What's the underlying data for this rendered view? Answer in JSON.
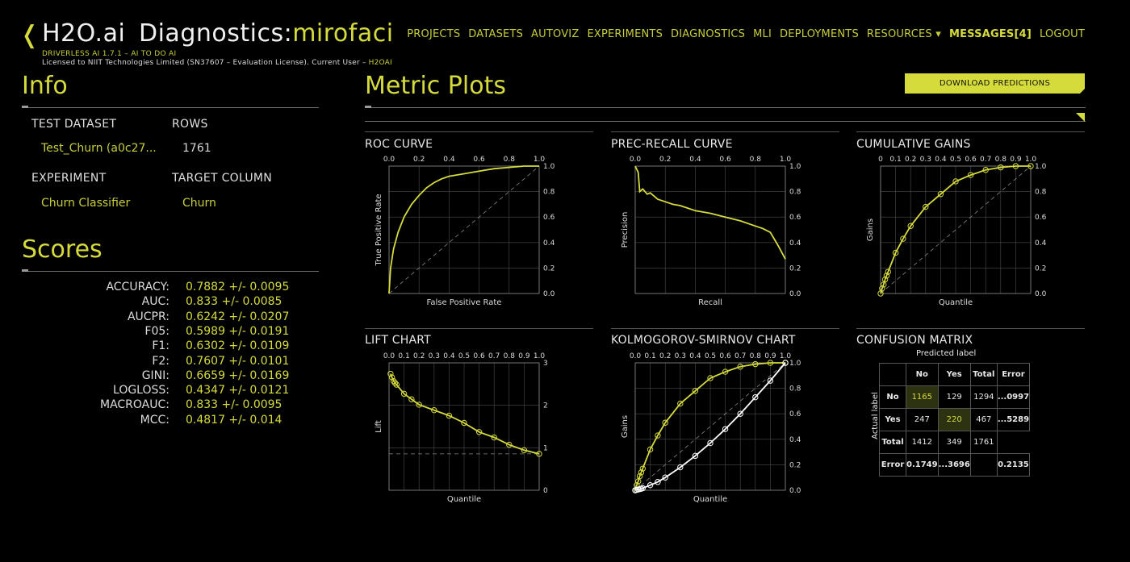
{
  "header": {
    "back_glyph": "❬",
    "brand": "H2O.ai",
    "title_prefix": "Diagnostics:",
    "title_name": "mirofaci",
    "version_line": "DRIVERLESS AI 1.7.1 – AI TO DO AI",
    "license_line": "Licensed to NIIT Technologies Limited (SN37607 – Evaluation License). Current User – ",
    "current_user": "H2OAI"
  },
  "nav": {
    "items": [
      "PROJECTS",
      "DATASETS",
      "AUTOVIZ",
      "EXPERIMENTS",
      "DIAGNOSTICS",
      "MLI",
      "DEPLOYMENTS"
    ],
    "resources": "RESOURCES ▾",
    "messages": "MESSAGES[4]",
    "logout": "LOGOUT"
  },
  "info": {
    "title": "Info",
    "test_dataset_label": "TEST DATASET",
    "test_dataset_value": "Test_Churn (a0c27...",
    "rows_label": "ROWS",
    "rows_value": "1761",
    "experiment_label": "EXPERIMENT",
    "experiment_value": "Churn Classifier",
    "target_label": "TARGET COLUMN",
    "target_value": "Churn"
  },
  "scores": {
    "title": "Scores",
    "items": [
      {
        "name": "ACCURACY:",
        "value": "0.7882 +/- 0.0095"
      },
      {
        "name": "AUC:",
        "value": "0.833 +/- 0.0085"
      },
      {
        "name": "AUCPR:",
        "value": "0.6242 +/- 0.0207"
      },
      {
        "name": "F05:",
        "value": "0.5989 +/- 0.0191"
      },
      {
        "name": "F1:",
        "value": "0.6302 +/- 0.0109"
      },
      {
        "name": "F2:",
        "value": "0.7607 +/- 0.0101"
      },
      {
        "name": "GINI:",
        "value": "0.6659 +/- 0.0169"
      },
      {
        "name": "LOGLOSS:",
        "value": "0.4347 +/- 0.0121"
      },
      {
        "name": "MACROAUC:",
        "value": "0.833 +/- 0.0095"
      },
      {
        "name": "MCC:",
        "value": "0.4817 +/- 0.014"
      }
    ]
  },
  "metric_plots": {
    "title": "Metric Plots",
    "download_label": "DOWNLOAD PREDICTIONS"
  },
  "colors": {
    "accent": "#d6db3c",
    "grid": "#4a4a4a",
    "ks_white": "#ffffff"
  },
  "chart_data": [
    {
      "id": "roc",
      "type": "line",
      "title": "ROC CURVE",
      "xlabel": "False Positive Rate",
      "ylabel": "True Positive Rate",
      "xlim": [
        0,
        1
      ],
      "ylim": [
        0,
        1
      ],
      "xticks": [
        "0.0",
        "0.2",
        "0.4",
        "0.6",
        "0.8",
        "1.0"
      ],
      "yticks": [
        "0.0",
        "0.2",
        "0.4",
        "0.6",
        "0.8",
        "1.0"
      ],
      "x_axis_position": "top",
      "y_axis_position": "right",
      "series": [
        {
          "x": [
            0,
            0.01,
            0.03,
            0.06,
            0.1,
            0.15,
            0.2,
            0.25,
            0.3,
            0.35,
            0.4,
            0.5,
            0.6,
            0.7,
            0.8,
            0.9,
            1.0
          ],
          "y": [
            0,
            0.2,
            0.35,
            0.48,
            0.6,
            0.7,
            0.77,
            0.83,
            0.87,
            0.9,
            0.92,
            0.94,
            0.96,
            0.98,
            0.99,
            1.0,
            1.0
          ]
        }
      ],
      "diagonal": true
    },
    {
      "id": "pr",
      "type": "line",
      "title": "PREC-RECALL CURVE",
      "xlabel": "Recall",
      "ylabel": "Precision",
      "xlim": [
        0,
        1
      ],
      "ylim": [
        0,
        1
      ],
      "xticks": [
        "0.0",
        "0.2",
        "0.4",
        "0.6",
        "0.8",
        "1.0"
      ],
      "yticks": [
        "0.0",
        "0.2",
        "0.4",
        "0.6",
        "0.8",
        "1.0"
      ],
      "x_axis_position": "top",
      "y_axis_position": "right",
      "series": [
        {
          "x": [
            0,
            0.02,
            0.03,
            0.05,
            0.08,
            0.1,
            0.15,
            0.2,
            0.25,
            0.3,
            0.35,
            0.4,
            0.5,
            0.6,
            0.7,
            0.8,
            0.85,
            0.9,
            0.95,
            1.0
          ],
          "y": [
            1.0,
            0.95,
            0.8,
            0.82,
            0.78,
            0.79,
            0.74,
            0.72,
            0.7,
            0.69,
            0.67,
            0.65,
            0.63,
            0.6,
            0.57,
            0.53,
            0.51,
            0.48,
            0.38,
            0.27
          ]
        }
      ],
      "diagonal": false
    },
    {
      "id": "gains",
      "type": "line",
      "title": "CUMULATIVE GAINS",
      "xlabel": "Quantile",
      "ylabel": "Gains",
      "xlim": [
        0,
        1
      ],
      "ylim": [
        0,
        1
      ],
      "xticks": [
        "0",
        "0.1",
        "0.2",
        "0.3",
        "0.4",
        "0.5",
        "0.6",
        "0.7",
        "0.8",
        "0.9",
        "1.0"
      ],
      "yticks": [
        "0.0",
        "0.2",
        "0.4",
        "0.6",
        "0.8",
        "1.0"
      ],
      "x_axis_position": "top",
      "y_axis_position": "right",
      "series": [
        {
          "x": [
            0,
            0.01,
            0.02,
            0.03,
            0.04,
            0.05,
            0.1,
            0.15,
            0.2,
            0.3,
            0.4,
            0.5,
            0.6,
            0.7,
            0.8,
            0.9,
            1.0
          ],
          "y": [
            0,
            0.04,
            0.07,
            0.11,
            0.14,
            0.17,
            0.32,
            0.43,
            0.53,
            0.68,
            0.78,
            0.88,
            0.93,
            0.97,
            0.99,
            1.0,
            1.0
          ],
          "markers": true
        }
      ],
      "diagonal": true
    },
    {
      "id": "lift",
      "type": "line",
      "title": "LIFT CHART",
      "xlabel": "Quantile",
      "ylabel": "Lift",
      "xlim": [
        0,
        1
      ],
      "ylim": [
        0,
        3.5
      ],
      "xticks": [
        "0.0",
        "0.1",
        "0.2",
        "0.3",
        "0.4",
        "0.5",
        "0.6",
        "0.7",
        "0.8",
        "0.9",
        "1.0"
      ],
      "yticks": [
        "0",
        "1",
        "2",
        "3"
      ],
      "x_axis_position": "top",
      "y_axis_position": "right",
      "series": [
        {
          "x": [
            0.01,
            0.02,
            0.03,
            0.04,
            0.05,
            0.1,
            0.15,
            0.2,
            0.3,
            0.4,
            0.5,
            0.6,
            0.7,
            0.8,
            0.9,
            1.0
          ],
          "y": [
            3.2,
            3.1,
            3.0,
            2.95,
            2.9,
            2.65,
            2.5,
            2.35,
            2.2,
            2.05,
            1.85,
            1.6,
            1.45,
            1.25,
            1.1,
            1.0
          ],
          "markers": true
        }
      ],
      "baseline": 1
    },
    {
      "id": "ks",
      "type": "line",
      "title": "KOLMOGOROV-SMIRNOV CHART",
      "xlabel": "Quantile",
      "ylabel": "Gains",
      "xlim": [
        0,
        1
      ],
      "ylim": [
        0,
        1
      ],
      "xticks": [
        "0.0",
        "0.1",
        "0.2",
        "0.3",
        "0.4",
        "0.5",
        "0.6",
        "0.7",
        "0.8",
        "0.9",
        "1.0"
      ],
      "yticks": [
        "0.0",
        "0.2",
        "0.4",
        "0.6",
        "0.8",
        "1.0"
      ],
      "x_axis_position": "top",
      "y_axis_position": "right",
      "series": [
        {
          "x": [
            0,
            0.01,
            0.02,
            0.03,
            0.04,
            0.05,
            0.1,
            0.15,
            0.2,
            0.3,
            0.4,
            0.5,
            0.6,
            0.7,
            0.8,
            0.9,
            1.0
          ],
          "y": [
            0,
            0.04,
            0.07,
            0.11,
            0.14,
            0.17,
            0.32,
            0.43,
            0.53,
            0.68,
            0.78,
            0.88,
            0.93,
            0.97,
            0.99,
            1.0,
            1.0
          ],
          "color": "accent",
          "markers": true
        },
        {
          "x": [
            0,
            0.01,
            0.02,
            0.03,
            0.04,
            0.05,
            0.1,
            0.15,
            0.2,
            0.3,
            0.4,
            0.5,
            0.6,
            0.7,
            0.8,
            0.9,
            1.0
          ],
          "y": [
            0,
            0.003,
            0.006,
            0.009,
            0.012,
            0.016,
            0.04,
            0.065,
            0.1,
            0.18,
            0.27,
            0.37,
            0.48,
            0.6,
            0.73,
            0.86,
            1.0
          ],
          "color": "white",
          "markers": true
        }
      ],
      "diagonal": true
    },
    {
      "id": "confusion",
      "type": "table",
      "title": "CONFUSION MATRIX",
      "xlabel": "Predicted label",
      "ylabel": "Actual label",
      "columns": [
        "",
        "No",
        "Yes",
        "Total",
        "Error"
      ],
      "rows": [
        [
          "No",
          "1165",
          "129",
          "1294",
          "...0997"
        ],
        [
          "Yes",
          "247",
          "220",
          "467",
          "...5289"
        ],
        [
          "Total",
          "1412",
          "349",
          "1761",
          ""
        ],
        [
          "Error",
          "0.1749",
          "...3696",
          "",
          "0.2135"
        ]
      ]
    }
  ]
}
